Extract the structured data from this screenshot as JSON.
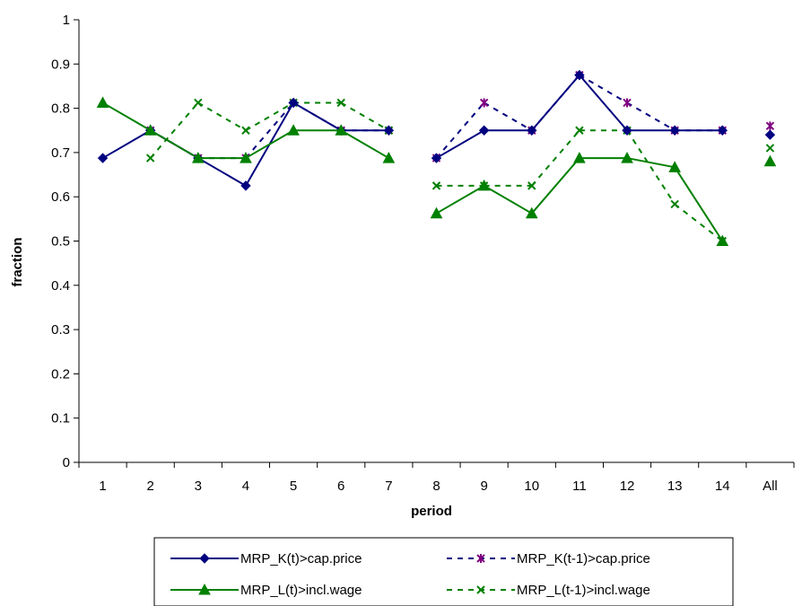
{
  "chart_data": {
    "type": "line",
    "title": "",
    "xlabel": "period",
    "ylabel": "fraction",
    "ylim": [
      0,
      1
    ],
    "yticks": [
      "0",
      "0.1",
      "0.2",
      "0.3",
      "0.4",
      "0.5",
      "0.6",
      "0.7",
      "0.8",
      "0.9",
      "1"
    ],
    "categories": [
      "1",
      "2",
      "3",
      "4",
      "5",
      "6",
      "7",
      "8",
      "9",
      "10",
      "11",
      "12",
      "13",
      "14",
      "All"
    ],
    "grid": false,
    "legend_position": "bottom",
    "series": [
      {
        "name": "MRP_K(t)>cap.price",
        "color": "#000080",
        "line": "solid",
        "marker": "diamond",
        "values": [
          0.6875,
          0.75,
          0.6875,
          0.625,
          0.8125,
          0.75,
          0.75,
          0.6875,
          0.75,
          0.75,
          0.875,
          0.75,
          0.75,
          0.75,
          0.74
        ]
      },
      {
        "name": "MRP_K(t-1)>cap.price",
        "color": "#000080",
        "marker_color": "#800080",
        "line": "dashed",
        "marker": "asterisk",
        "values": [
          null,
          0.75,
          0.6875,
          0.6875,
          0.8125,
          0.75,
          0.75,
          0.6875,
          0.8125,
          0.75,
          0.875,
          0.8125,
          0.75,
          0.75,
          0.76
        ]
      },
      {
        "name": "MRP_L(t)>incl.wage",
        "color": "#008000",
        "line": "solid",
        "marker": "triangle",
        "values": [
          0.8125,
          0.75,
          0.6875,
          0.6875,
          0.75,
          0.75,
          0.6875,
          0.5625,
          0.625,
          0.5625,
          0.6875,
          0.6875,
          0.6667,
          0.5,
          0.68
        ]
      },
      {
        "name": "MRP_L(t-1)>incl.wage",
        "color": "#008000",
        "line": "dashed",
        "marker": "x",
        "values": [
          null,
          0.6875,
          0.8125,
          0.75,
          0.8125,
          0.8125,
          0.75,
          0.625,
          0.625,
          0.625,
          0.75,
          0.75,
          0.5833,
          0.5,
          0.71
        ]
      }
    ]
  }
}
